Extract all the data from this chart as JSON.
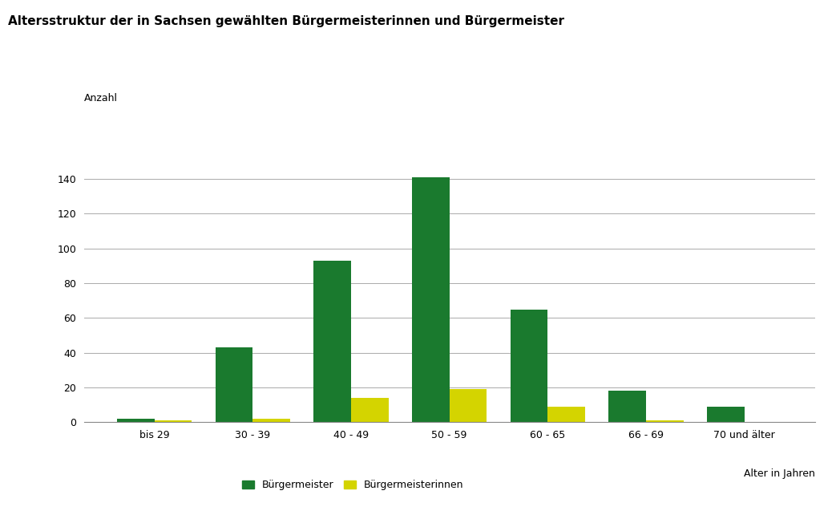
{
  "title": "Altersstruktur der in Sachsen gewählten Bürgermeisterinnen und Bürgermeister",
  "ylabel": "Anzahl",
  "xlabel": "Alter in Jahren",
  "categories": [
    "bis 29",
    "30 - 39",
    "40 - 49",
    "50 - 59",
    "60 - 65",
    "66 - 69",
    "70 und älter"
  ],
  "buergermeister": [
    2,
    43,
    93,
    141,
    65,
    18,
    9
  ],
  "buergermeisterinnen": [
    1,
    2,
    14,
    19,
    9,
    1,
    0
  ],
  "color_buergermeister": "#1a7a2e",
  "color_buergermeisterinnen": "#d4d400",
  "ylim": [
    0,
    160
  ],
  "yticks": [
    0,
    20,
    40,
    60,
    80,
    100,
    120,
    140
  ],
  "bar_width": 0.38,
  "background_color": "#ffffff",
  "title_fontsize": 11,
  "label_fontsize": 9,
  "tick_fontsize": 9,
  "legend_label_buergermeister": "Bürgermeister",
  "legend_label_buergermeisterinnen": "Bürgermeisterinnen"
}
